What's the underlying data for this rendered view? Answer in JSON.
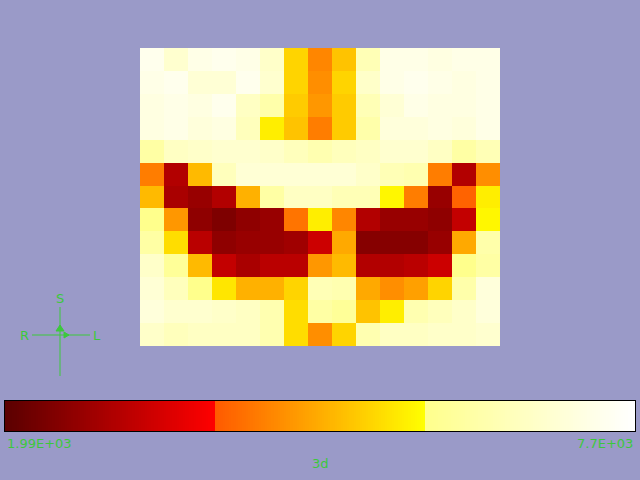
{
  "chart_data": {
    "type": "heatmap",
    "tick_labels": false,
    "cells": [
      [
        7400,
        6900,
        7300,
        7400,
        7300,
        6800,
        5300,
        4400,
        5100,
        6500,
        7300,
        7300,
        7200,
        7300,
        7300
      ],
      [
        7300,
        7400,
        7000,
        7000,
        7400,
        6900,
        5300,
        4500,
        5300,
        6800,
        7300,
        7400,
        7300,
        7200,
        7300
      ],
      [
        7200,
        7300,
        7200,
        7400,
        6700,
        6300,
        5200,
        4600,
        5200,
        6500,
        7000,
        7300,
        7200,
        7200,
        7300
      ],
      [
        7200,
        7300,
        7100,
        7200,
        6600,
        5600,
        5100,
        4300,
        5200,
        6300,
        7100,
        7100,
        7200,
        7100,
        7300
      ],
      [
        6200,
        6700,
        6800,
        6900,
        6900,
        6800,
        6600,
        6400,
        6600,
        6700,
        6900,
        6900,
        6700,
        6200,
        6500
      ],
      [
        4300,
        3000,
        5000,
        6600,
        7000,
        7000,
        7000,
        7000,
        7000,
        6800,
        6500,
        6400,
        4300,
        3000,
        4500
      ],
      [
        5000,
        2900,
        2700,
        3000,
        4900,
        6200,
        6700,
        6700,
        6500,
        6500,
        5700,
        4300,
        2700,
        4000,
        5600
      ],
      [
        5800,
        4600,
        2600,
        2400,
        2600,
        2700,
        4200,
        5600,
        4400,
        3000,
        2700,
        2700,
        2600,
        3200,
        5700
      ],
      [
        6200,
        5400,
        3100,
        2600,
        2700,
        2700,
        2800,
        3300,
        4800,
        2500,
        2500,
        2500,
        2700,
        4800,
        6300
      ],
      [
        6800,
        6000,
        5000,
        3200,
        2900,
        3100,
        3100,
        4600,
        5000,
        3000,
        3000,
        3100,
        3300,
        5800,
        6200
      ],
      [
        7000,
        6600,
        5800,
        5500,
        4900,
        4900,
        5300,
        6500,
        6400,
        4800,
        4500,
        4700,
        5300,
        6300,
        7100
      ],
      [
        7100,
        6900,
        6900,
        6800,
        6700,
        6400,
        5400,
        6200,
        6000,
        5100,
        5600,
        6400,
        6600,
        6800,
        7100
      ],
      [
        6800,
        6600,
        6700,
        6700,
        6700,
        6400,
        5400,
        4500,
        5300,
        6400,
        6700,
        6700,
        6800,
        6800,
        6900
      ]
    ],
    "colorbar_range": [
      1990,
      7700
    ],
    "colorbar_ticks": [
      {
        "value": 1990,
        "label": "1.99E+03"
      },
      {
        "value": 7700,
        "label": "7.7E+03"
      }
    ],
    "colorbar_label": "3d",
    "annotations": [
      "S",
      "R",
      "L"
    ]
  }
}
